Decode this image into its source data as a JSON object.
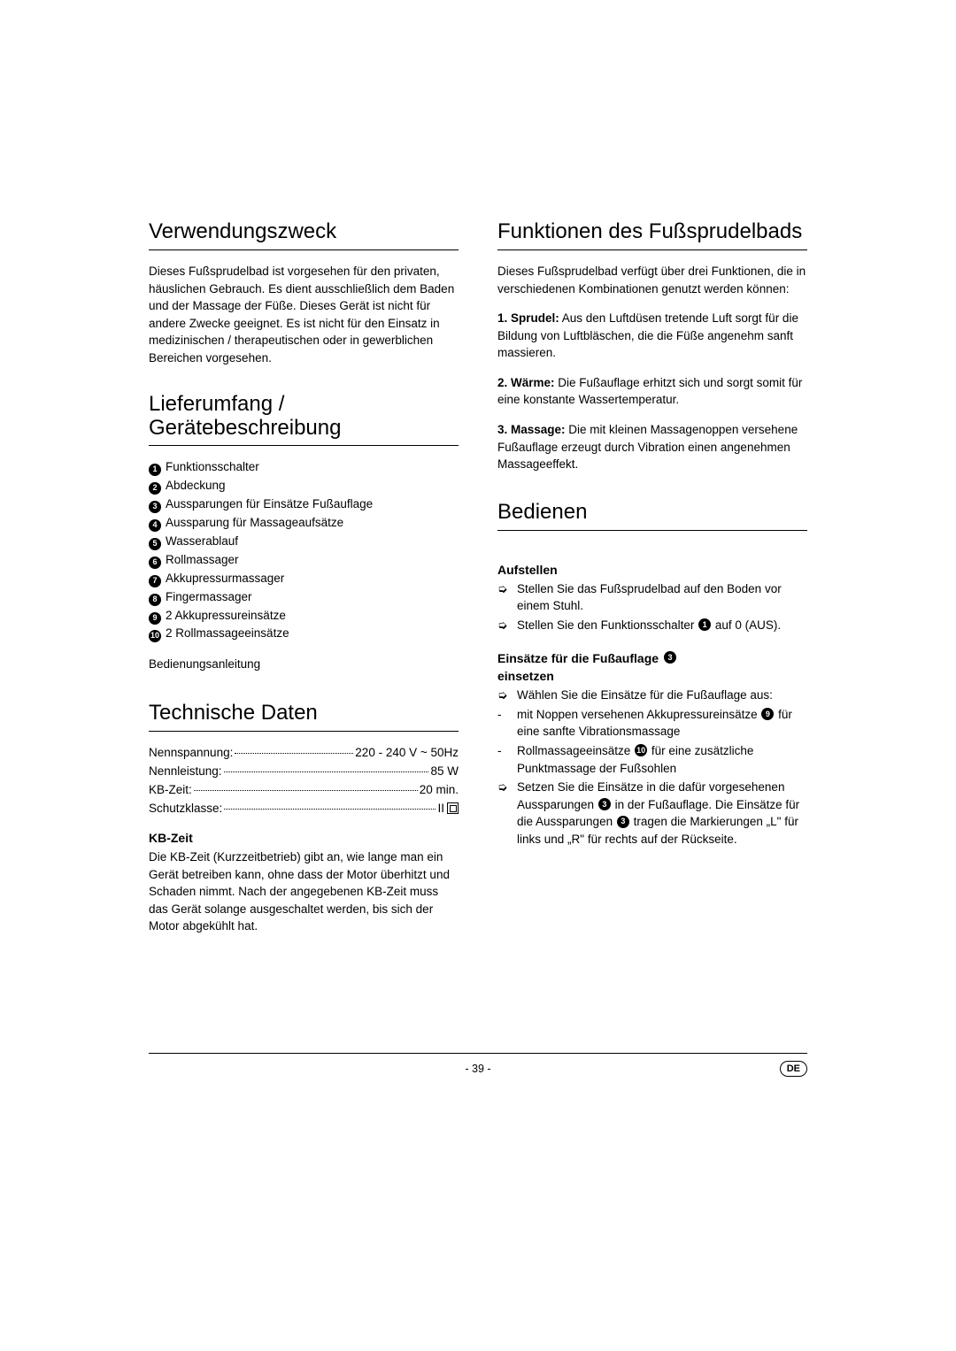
{
  "left": {
    "s1": {
      "title": "Verwendungszweck",
      "p1": "Dieses Fußsprudelbad ist vorgesehen für den privaten, häuslichen Gebrauch. Es dient ausschließlich dem Baden und der Massage der Füße. Dieses Gerät ist nicht für andere Zwecke geeignet. Es ist nicht für den Einsatz in medizinischen / therapeutischen oder in gewerblichen Bereichen vorgesehen."
    },
    "s2": {
      "title": "Lieferumfang / Gerätebeschreibung",
      "items": [
        "Funktionsschalter",
        "Abdeckung",
        "Aussparungen für Einsätze Fußauflage",
        "Aussparung für Massageaufsätze",
        "Wasserablauf",
        "Rollmassager",
        "Akkupressurmassager",
        "Fingermassager",
        "2 Akkupressureinsätze",
        "2 Rollmassageeinsätze"
      ],
      "tail": "Bedienungsanleitung"
    },
    "s3": {
      "title": "Technische Daten",
      "specs": [
        {
          "label": "Nennspannung:",
          "value": "220 - 240 V ~ 50Hz"
        },
        {
          "label": "Nennleistung:",
          "value": "85 W"
        },
        {
          "label": "KB-Zeit:",
          "value": "20 min."
        },
        {
          "label": "Schutzklasse:",
          "value": "II",
          "classII": true
        }
      ],
      "kb_h": "KB-Zeit",
      "kb_p": "Die KB-Zeit (Kurzzeitbetrieb) gibt an, wie lange man ein Gerät betreiben kann, ohne dass der Motor überhitzt und Schaden nimmt. Nach der angegebenen KB-Zeit muss das Gerät solange ausgeschaltet werden, bis sich der Motor abgekühlt hat."
    }
  },
  "right": {
    "s1": {
      "title": "Funktionen des Fußsprudelbads",
      "intro": "Dieses Fußsprudelbad verfügt über drei Funktionen, die in verschiedenen Kombinationen genutzt werden können:",
      "f1b": "1. Sprudel:",
      "f1": " Aus den Luftdüsen tretende Luft sorgt für die Bildung von Luftbläschen, die die Füße angenehm sanft massieren.",
      "f2b": "2. Wärme:",
      "f2": " Die Fußauflage erhitzt sich und sorgt somit für eine konstante Wassertemperatur.",
      "f3b": "3. Massage:",
      "f3": " Die mit kleinen Massagenoppen versehene Fußauflage erzeugt durch Vibration einen angenehmen Massageeffekt."
    },
    "s2": {
      "title": "Bedienen",
      "a_h": "Aufstellen",
      "a1": "Stellen Sie das Fußsprudelbad auf den Boden vor einem Stuhl.",
      "a2a": "Stellen Sie den Funktionsschalter ",
      "a2n": "1",
      "a2b": " auf ",
      "a2bold": "0",
      "a2c": " (AUS).",
      "b_h_a": "Einsätze für die Fußauflage ",
      "b_h_n": "3",
      "b_h_b": " einsetzen",
      "b1": "Wählen Sie die Einsätze für die Fußauflage aus:",
      "b2a": "mit Noppen versehenen Akkupressureinsätze ",
      "b2n": "9",
      "b2b": " für eine sanfte Vibrationsmassage",
      "b3a": "Rollmassageeinsätze ",
      "b3n": "10",
      "b3b": " für eine zusätzliche Punktmassage der Fußsohlen",
      "b4a": "Setzen Sie die Einsätze in die dafür vorgesehenen Aussparungen ",
      "b4n1": "3",
      "b4b": " in der Fußauflage. Die Einsätze für die Aussparungen ",
      "b4n2": "3",
      "b4c": " tragen die Markierungen „L\" für links und „R\" für rechts auf der Rückseite."
    }
  },
  "footer": {
    "page": "- 39 -",
    "lang": "DE"
  }
}
